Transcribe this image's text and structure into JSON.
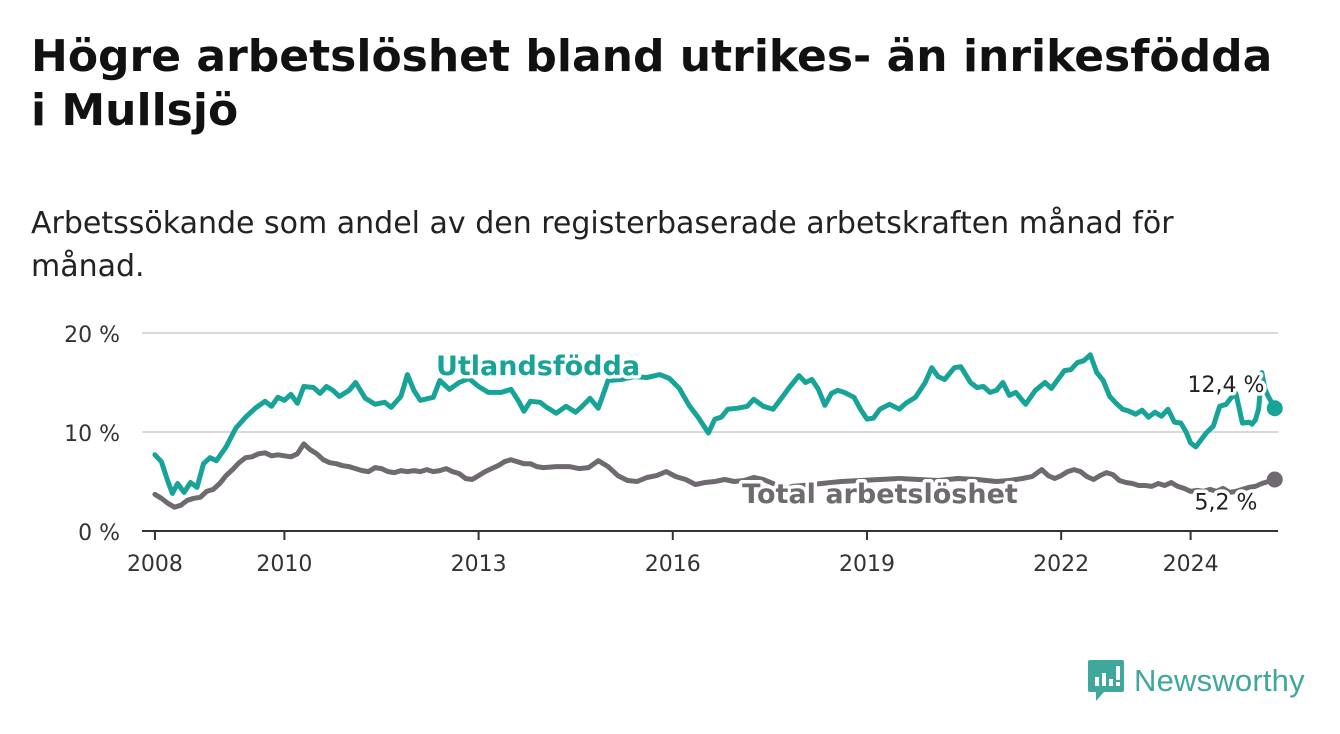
{
  "header": {
    "title": "Högre arbetslöshet bland utrikes- än inrikesfödda i Mullsjö",
    "subtitle": "Arbetssökande som andel av den registerbaserade arbetskraften månad för månad."
  },
  "brand": {
    "name": "Newsworthy",
    "icon": "newsworthy-logo-icon",
    "color": "#3fa79c"
  },
  "chart_data": {
    "type": "line",
    "title": "Högre arbetslöshet bland utrikes- än inrikesfödda i Mullsjö",
    "subtitle": "Arbetssökande som andel av den registerbaserade arbetskraften månad för månad.",
    "xlabel": "",
    "ylabel": "",
    "ylim": [
      0,
      20
    ],
    "xlim": [
      2007.8,
      2025.35
    ],
    "grid": true,
    "x_ticks": [
      2008,
      2010,
      2013,
      2016,
      2019,
      2022,
      2024
    ],
    "x_tick_labels": [
      "2008",
      "2010",
      "2013",
      "2016",
      "2019",
      "2022",
      "2024"
    ],
    "y_ticks": [
      0,
      10,
      20
    ],
    "y_tick_labels": [
      "0 %",
      "10 %",
      "20 %"
    ],
    "series": [
      {
        "name": "Utlandsfödda",
        "label": "Utlandsfödda",
        "color": "#17a398",
        "end_label": "12,4 %",
        "points": [
          [
            2008.0,
            7.7
          ],
          [
            2008.1,
            7.0
          ],
          [
            2008.2,
            5.0
          ],
          [
            2008.27,
            3.8
          ],
          [
            2008.35,
            4.8
          ],
          [
            2008.45,
            3.9
          ],
          [
            2008.55,
            4.9
          ],
          [
            2008.65,
            4.4
          ],
          [
            2008.75,
            6.8
          ],
          [
            2008.85,
            7.4
          ],
          [
            2008.95,
            7.1
          ],
          [
            2009.1,
            8.5
          ],
          [
            2009.25,
            10.4
          ],
          [
            2009.4,
            11.5
          ],
          [
            2009.55,
            12.4
          ],
          [
            2009.7,
            13.1
          ],
          [
            2009.8,
            12.6
          ],
          [
            2009.9,
            13.5
          ],
          [
            2010.0,
            13.2
          ],
          [
            2010.1,
            13.8
          ],
          [
            2010.2,
            12.9
          ],
          [
            2010.3,
            14.6
          ],
          [
            2010.45,
            14.5
          ],
          [
            2010.55,
            13.9
          ],
          [
            2010.65,
            14.6
          ],
          [
            2010.75,
            14.2
          ],
          [
            2010.85,
            13.6
          ],
          [
            2011.0,
            14.2
          ],
          [
            2011.1,
            15.0
          ],
          [
            2011.25,
            13.4
          ],
          [
            2011.4,
            12.8
          ],
          [
            2011.55,
            13.0
          ],
          [
            2011.65,
            12.5
          ],
          [
            2011.8,
            13.6
          ],
          [
            2011.9,
            15.8
          ],
          [
            2012.0,
            14.2
          ],
          [
            2012.1,
            13.2
          ],
          [
            2012.3,
            13.5
          ],
          [
            2012.4,
            15.2
          ],
          [
            2012.55,
            14.3
          ],
          [
            2012.7,
            15.0
          ],
          [
            2012.85,
            15.4
          ],
          [
            2013.0,
            14.6
          ],
          [
            2013.15,
            14.0
          ],
          [
            2013.35,
            14.0
          ],
          [
            2013.5,
            14.3
          ],
          [
            2013.62,
            13.1
          ],
          [
            2013.7,
            12.1
          ],
          [
            2013.8,
            13.1
          ],
          [
            2013.95,
            13.0
          ],
          [
            2014.05,
            12.5
          ],
          [
            2014.2,
            11.9
          ],
          [
            2014.35,
            12.6
          ],
          [
            2014.5,
            12.0
          ],
          [
            2014.6,
            12.6
          ],
          [
            2014.72,
            13.4
          ],
          [
            2014.85,
            12.4
          ],
          [
            2015.0,
            15.2
          ],
          [
            2015.2,
            15.3
          ],
          [
            2015.4,
            15.6
          ],
          [
            2015.6,
            15.5
          ],
          [
            2015.8,
            15.8
          ],
          [
            2015.95,
            15.4
          ],
          [
            2016.1,
            14.4
          ],
          [
            2016.25,
            12.7
          ],
          [
            2016.4,
            11.4
          ],
          [
            2016.55,
            9.9
          ],
          [
            2016.65,
            11.3
          ],
          [
            2016.75,
            11.5
          ],
          [
            2016.85,
            12.3
          ],
          [
            2017.0,
            12.4
          ],
          [
            2017.15,
            12.6
          ],
          [
            2017.25,
            13.3
          ],
          [
            2017.4,
            12.6
          ],
          [
            2017.55,
            12.3
          ],
          [
            2017.7,
            13.6
          ],
          [
            2017.8,
            14.5
          ],
          [
            2017.95,
            15.7
          ],
          [
            2018.05,
            15.0
          ],
          [
            2018.15,
            15.3
          ],
          [
            2018.25,
            14.3
          ],
          [
            2018.35,
            12.7
          ],
          [
            2018.45,
            13.9
          ],
          [
            2018.55,
            14.2
          ],
          [
            2018.65,
            14.0
          ],
          [
            2018.8,
            13.5
          ],
          [
            2018.9,
            12.3
          ],
          [
            2019.0,
            11.3
          ],
          [
            2019.1,
            11.4
          ],
          [
            2019.2,
            12.3
          ],
          [
            2019.35,
            12.8
          ],
          [
            2019.5,
            12.3
          ],
          [
            2019.6,
            12.9
          ],
          [
            2019.75,
            13.5
          ],
          [
            2019.9,
            15.0
          ],
          [
            2020.0,
            16.5
          ],
          [
            2020.1,
            15.6
          ],
          [
            2020.2,
            15.3
          ],
          [
            2020.35,
            16.5
          ],
          [
            2020.45,
            16.6
          ],
          [
            2020.6,
            15.0
          ],
          [
            2020.7,
            14.5
          ],
          [
            2020.8,
            14.6
          ],
          [
            2020.9,
            14.0
          ],
          [
            2021.0,
            14.2
          ],
          [
            2021.1,
            15.0
          ],
          [
            2021.2,
            13.7
          ],
          [
            2021.3,
            14.0
          ],
          [
            2021.45,
            12.8
          ],
          [
            2021.6,
            14.2
          ],
          [
            2021.75,
            15.0
          ],
          [
            2021.85,
            14.4
          ],
          [
            2021.95,
            15.3
          ],
          [
            2022.05,
            16.2
          ],
          [
            2022.15,
            16.3
          ],
          [
            2022.25,
            17.0
          ],
          [
            2022.35,
            17.2
          ],
          [
            2022.45,
            17.8
          ],
          [
            2022.55,
            16.0
          ],
          [
            2022.65,
            15.2
          ],
          [
            2022.75,
            13.6
          ],
          [
            2022.85,
            12.9
          ],
          [
            2022.95,
            12.3
          ],
          [
            2023.05,
            12.1
          ],
          [
            2023.15,
            11.8
          ],
          [
            2023.25,
            12.2
          ],
          [
            2023.35,
            11.5
          ],
          [
            2023.45,
            12.0
          ],
          [
            2023.55,
            11.6
          ],
          [
            2023.65,
            12.3
          ],
          [
            2023.75,
            11.0
          ],
          [
            2023.85,
            10.9
          ],
          [
            2023.93,
            10.0
          ],
          [
            2024.0,
            8.9
          ],
          [
            2024.08,
            8.5
          ],
          [
            2024.16,
            9.2
          ],
          [
            2024.24,
            9.9
          ],
          [
            2024.35,
            10.6
          ],
          [
            2024.45,
            12.6
          ],
          [
            2024.55,
            12.8
          ],
          [
            2024.62,
            13.4
          ],
          [
            2024.7,
            13.9
          ],
          [
            2024.8,
            10.9
          ],
          [
            2024.9,
            11.0
          ],
          [
            2024.95,
            10.8
          ],
          [
            2025.0,
            11.2
          ],
          [
            2025.05,
            12.3
          ],
          [
            2025.1,
            16.0
          ],
          [
            2025.15,
            14.3
          ],
          [
            2025.2,
            13.6
          ],
          [
            2025.25,
            13.0
          ],
          [
            2025.3,
            12.4
          ]
        ]
      },
      {
        "name": "Total arbetslöshet",
        "label": "Total arbetslöshet",
        "color": "#6e6a6f",
        "end_label": "5,2 %",
        "points": [
          [
            2008.0,
            3.7
          ],
          [
            2008.1,
            3.3
          ],
          [
            2008.2,
            2.8
          ],
          [
            2008.3,
            2.4
          ],
          [
            2008.4,
            2.6
          ],
          [
            2008.5,
            3.1
          ],
          [
            2008.6,
            3.3
          ],
          [
            2008.7,
            3.4
          ],
          [
            2008.8,
            4.0
          ],
          [
            2008.9,
            4.2
          ],
          [
            2009.0,
            4.8
          ],
          [
            2009.1,
            5.6
          ],
          [
            2009.2,
            6.2
          ],
          [
            2009.3,
            6.9
          ],
          [
            2009.4,
            7.4
          ],
          [
            2009.5,
            7.5
          ],
          [
            2009.6,
            7.8
          ],
          [
            2009.7,
            7.9
          ],
          [
            2009.8,
            7.6
          ],
          [
            2009.9,
            7.7
          ],
          [
            2010.0,
            7.6
          ],
          [
            2010.1,
            7.5
          ],
          [
            2010.2,
            7.8
          ],
          [
            2010.3,
            8.8
          ],
          [
            2010.4,
            8.2
          ],
          [
            2010.5,
            7.8
          ],
          [
            2010.6,
            7.2
          ],
          [
            2010.7,
            6.9
          ],
          [
            2010.8,
            6.8
          ],
          [
            2010.9,
            6.6
          ],
          [
            2011.0,
            6.5
          ],
          [
            2011.1,
            6.3
          ],
          [
            2011.2,
            6.1
          ],
          [
            2011.3,
            6.0
          ],
          [
            2011.4,
            6.4
          ],
          [
            2011.5,
            6.3
          ],
          [
            2011.6,
            6.0
          ],
          [
            2011.7,
            5.9
          ],
          [
            2011.8,
            6.1
          ],
          [
            2011.9,
            6.0
          ],
          [
            2012.0,
            6.1
          ],
          [
            2012.1,
            6.0
          ],
          [
            2012.2,
            6.2
          ],
          [
            2012.3,
            6.0
          ],
          [
            2012.4,
            6.1
          ],
          [
            2012.5,
            6.3
          ],
          [
            2012.6,
            6.0
          ],
          [
            2012.7,
            5.8
          ],
          [
            2012.8,
            5.3
          ],
          [
            2012.9,
            5.2
          ],
          [
            2013.0,
            5.6
          ],
          [
            2013.1,
            6.0
          ],
          [
            2013.2,
            6.3
          ],
          [
            2013.3,
            6.6
          ],
          [
            2013.4,
            7.0
          ],
          [
            2013.5,
            7.2
          ],
          [
            2013.6,
            7.0
          ],
          [
            2013.7,
            6.8
          ],
          [
            2013.8,
            6.8
          ],
          [
            2013.9,
            6.5
          ],
          [
            2014.0,
            6.4
          ],
          [
            2014.2,
            6.5
          ],
          [
            2014.4,
            6.5
          ],
          [
            2014.55,
            6.3
          ],
          [
            2014.7,
            6.4
          ],
          [
            2014.85,
            7.1
          ],
          [
            2015.0,
            6.5
          ],
          [
            2015.15,
            5.6
          ],
          [
            2015.3,
            5.1
          ],
          [
            2015.45,
            5.0
          ],
          [
            2015.6,
            5.4
          ],
          [
            2015.75,
            5.6
          ],
          [
            2015.9,
            6.0
          ],
          [
            2016.05,
            5.5
          ],
          [
            2016.2,
            5.2
          ],
          [
            2016.35,
            4.7
          ],
          [
            2016.5,
            4.9
          ],
          [
            2016.65,
            5.0
          ],
          [
            2016.8,
            5.2
          ],
          [
            2016.95,
            5.0
          ],
          [
            2017.1,
            5.1
          ],
          [
            2017.25,
            5.4
          ],
          [
            2017.4,
            5.2
          ],
          [
            2017.55,
            4.8
          ],
          [
            2017.7,
            4.2
          ],
          [
            2017.85,
            4.5
          ],
          [
            2018.0,
            4.6
          ],
          [
            2018.3,
            4.8
          ],
          [
            2018.6,
            5.0
          ],
          [
            2018.9,
            5.1
          ],
          [
            2019.2,
            5.2
          ],
          [
            2019.5,
            5.3
          ],
          [
            2019.8,
            5.2
          ],
          [
            2020.1,
            5.1
          ],
          [
            2020.4,
            5.3
          ],
          [
            2020.7,
            5.2
          ],
          [
            2021.0,
            5.0
          ],
          [
            2021.2,
            5.1
          ],
          [
            2021.4,
            5.3
          ],
          [
            2021.55,
            5.5
          ],
          [
            2021.7,
            6.2
          ],
          [
            2021.8,
            5.6
          ],
          [
            2021.9,
            5.3
          ],
          [
            2022.0,
            5.6
          ],
          [
            2022.1,
            6.0
          ],
          [
            2022.2,
            6.2
          ],
          [
            2022.3,
            6.0
          ],
          [
            2022.4,
            5.5
          ],
          [
            2022.5,
            5.2
          ],
          [
            2022.6,
            5.6
          ],
          [
            2022.7,
            5.9
          ],
          [
            2022.8,
            5.7
          ],
          [
            2022.9,
            5.1
          ],
          [
            2023.0,
            4.9
          ],
          [
            2023.1,
            4.8
          ],
          [
            2023.2,
            4.6
          ],
          [
            2023.3,
            4.6
          ],
          [
            2023.4,
            4.5
          ],
          [
            2023.5,
            4.8
          ],
          [
            2023.6,
            4.6
          ],
          [
            2023.7,
            4.9
          ],
          [
            2023.8,
            4.5
          ],
          [
            2023.9,
            4.3
          ],
          [
            2024.0,
            4.0
          ],
          [
            2024.1,
            4.1
          ],
          [
            2024.2,
            4.0
          ],
          [
            2024.3,
            4.2
          ],
          [
            2024.4,
            4.0
          ],
          [
            2024.5,
            4.3
          ],
          [
            2024.6,
            3.9
          ],
          [
            2024.7,
            4.0
          ],
          [
            2024.8,
            4.2
          ],
          [
            2024.9,
            4.4
          ],
          [
            2025.0,
            4.5
          ],
          [
            2025.1,
            4.8
          ],
          [
            2025.2,
            5.0
          ],
          [
            2025.3,
            5.2
          ]
        ]
      }
    ]
  }
}
